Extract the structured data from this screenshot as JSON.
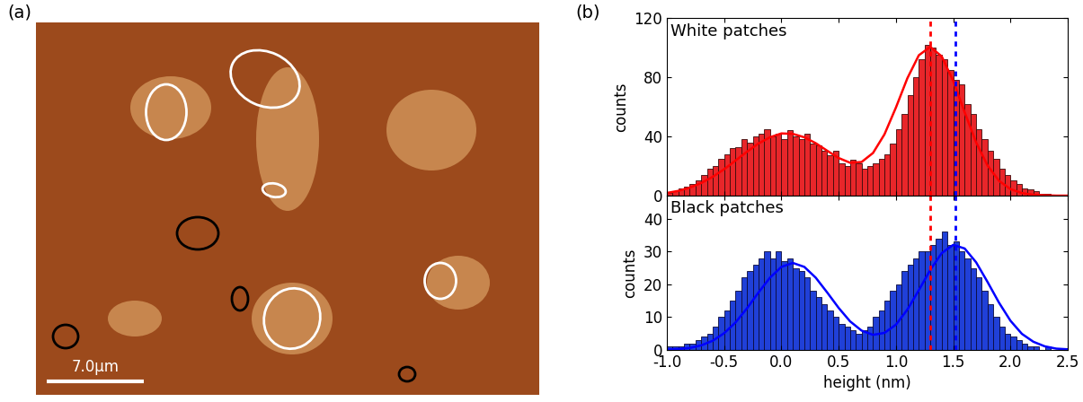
{
  "chart_data": [
    {
      "type": "image",
      "panel_label": "(a)",
      "scale_bar": "7.0µm"
    },
    {
      "type": "histogram",
      "panel_label": "(b)",
      "title": "White patches",
      "y_label": "counts",
      "color": "#e8262a",
      "bins": [
        -1.0,
        -0.95,
        -0.9,
        -0.85,
        -0.8,
        -0.75,
        -0.7,
        -0.65,
        -0.6,
        -0.55,
        -0.5,
        -0.45,
        -0.4,
        -0.35,
        -0.3,
        -0.25,
        -0.2,
        -0.15,
        -0.1,
        -0.05,
        0.0,
        0.05,
        0.1,
        0.15,
        0.2,
        0.25,
        0.3,
        0.35,
        0.4,
        0.45,
        0.5,
        0.55,
        0.6,
        0.65,
        0.7,
        0.75,
        0.8,
        0.85,
        0.9,
        0.95,
        1.0,
        1.05,
        1.1,
        1.15,
        1.2,
        1.25,
        1.3,
        1.35,
        1.4,
        1.45,
        1.5,
        1.55,
        1.6,
        1.65,
        1.7,
        1.75,
        1.8,
        1.85,
        1.9,
        1.95,
        2.0,
        2.05,
        2.1,
        2.15,
        2.2,
        2.25,
        2.3,
        2.35,
        2.4,
        2.45,
        2.5
      ],
      "values": [
        2,
        3,
        5,
        6,
        8,
        10,
        14,
        18,
        20,
        25,
        28,
        32,
        33,
        38,
        36,
        40,
        42,
        45,
        40,
        42,
        38,
        44,
        40,
        38,
        42,
        35,
        34,
        30,
        27,
        30,
        22,
        20,
        24,
        22,
        18,
        20,
        22,
        25,
        28,
        35,
        45,
        55,
        68,
        80,
        92,
        102,
        100,
        95,
        92,
        85,
        78,
        75,
        62,
        55,
        45,
        38,
        30,
        25,
        18,
        14,
        10,
        8,
        5,
        4,
        3,
        1,
        1,
        0,
        0,
        0
      ],
      "fit": {
        "color": "#ff0000",
        "x": [
          -1.0,
          -0.9,
          -0.8,
          -0.7,
          -0.6,
          -0.5,
          -0.4,
          -0.3,
          -0.2,
          -0.1,
          0.0,
          0.1,
          0.2,
          0.3,
          0.4,
          0.5,
          0.6,
          0.7,
          0.8,
          0.9,
          1.0,
          1.1,
          1.2,
          1.3,
          1.4,
          1.5,
          1.6,
          1.7,
          1.8,
          1.9,
          2.0,
          2.1,
          2.2,
          2.3,
          2.4,
          2.5
        ],
        "values": [
          1.8,
          3.2,
          5.4,
          8.5,
          12.7,
          17.8,
          23.7,
          29.7,
          35.2,
          39.4,
          42.0,
          41.7,
          39.4,
          35.4,
          30.3,
          25.4,
          22.2,
          22.7,
          28.8,
          41.4,
          59.5,
          79.3,
          94.8,
          100.5,
          94.0,
          77.5,
          56.3,
          36.0,
          20.3,
          10.0,
          4.4,
          1.7,
          0.6,
          0.2,
          0.0,
          0.0
        ]
      },
      "vlines": [
        {
          "value": 1.3,
          "color": "#ff0000"
        },
        {
          "value": 1.52,
          "color": "#0000ff"
        }
      ],
      "xlim": [
        -1.0,
        2.5
      ],
      "xticks": [
        {
          "value": -1.0,
          "label": "-1.0"
        },
        {
          "value": -0.5,
          "label": "-0.5"
        },
        {
          "value": 0.0,
          "label": "0.0"
        },
        {
          "value": 0.5,
          "label": "0.5"
        },
        {
          "value": 1.0,
          "label": "1.0"
        },
        {
          "value": 1.5,
          "label": "1.5"
        },
        {
          "value": 2.0,
          "label": "2.0"
        },
        {
          "value": 2.5,
          "label": "2.5"
        }
      ],
      "ylim": [
        0,
        120
      ],
      "yticks": [
        0,
        40,
        80,
        120
      ],
      "tick_labels": "y"
    },
    {
      "type": "histogram",
      "title": "Black patches",
      "y_label": "counts",
      "x_label": "height (nm)",
      "color": "#2040d8",
      "bins": [
        -1.0,
        -0.95,
        -0.9,
        -0.85,
        -0.8,
        -0.75,
        -0.7,
        -0.65,
        -0.6,
        -0.55,
        -0.5,
        -0.45,
        -0.4,
        -0.35,
        -0.3,
        -0.25,
        -0.2,
        -0.15,
        -0.1,
        -0.05,
        0.0,
        0.05,
        0.1,
        0.15,
        0.2,
        0.25,
        0.3,
        0.35,
        0.4,
        0.45,
        0.5,
        0.55,
        0.6,
        0.65,
        0.7,
        0.75,
        0.8,
        0.85,
        0.9,
        0.95,
        1.0,
        1.05,
        1.1,
        1.15,
        1.2,
        1.25,
        1.3,
        1.35,
        1.4,
        1.45,
        1.5,
        1.55,
        1.6,
        1.65,
        1.7,
        1.75,
        1.8,
        1.85,
        1.9,
        1.95,
        2.0,
        2.05,
        2.1,
        2.15,
        2.2,
        2.25,
        2.3,
        2.35,
        2.4,
        2.45,
        2.5
      ],
      "values": [
        1,
        1,
        1,
        2,
        2,
        3,
        4,
        5,
        7,
        10,
        12,
        15,
        18,
        22,
        24,
        26,
        28,
        30,
        28,
        30,
        27,
        28,
        25,
        24,
        22,
        18,
        16,
        14,
        12,
        10,
        8,
        7,
        6,
        5,
        6,
        7,
        10,
        12,
        15,
        18,
        20,
        24,
        26,
        28,
        30,
        30,
        32,
        34,
        36,
        32,
        33,
        30,
        28,
        25,
        22,
        18,
        14,
        10,
        7,
        5,
        4,
        3,
        2,
        1,
        1,
        0,
        1,
        0,
        0,
        0
      ],
      "fit": {
        "color": "#0000ff",
        "x": [
          -1.0,
          -0.9,
          -0.8,
          -0.7,
          -0.6,
          -0.5,
          -0.4,
          -0.3,
          -0.2,
          -0.1,
          0.0,
          0.1,
          0.2,
          0.3,
          0.4,
          0.5,
          0.6,
          0.7,
          0.8,
          0.9,
          1.0,
          1.1,
          1.2,
          1.3,
          1.4,
          1.5,
          1.6,
          1.7,
          1.8,
          1.9,
          2.0,
          2.1,
          2.2,
          2.3,
          2.4,
          2.5
        ],
        "values": [
          0.1,
          0.3,
          0.6,
          1.4,
          2.8,
          5.1,
          8.4,
          12.7,
          17.5,
          22.0,
          25.3,
          26.5,
          25.3,
          22.0,
          17.5,
          12.8,
          8.7,
          5.9,
          4.6,
          5.2,
          7.7,
          12.3,
          18.2,
          24.4,
          29.5,
          32.0,
          30.9,
          26.7,
          20.7,
          14.4,
          8.9,
          4.9,
          2.5,
          1.1,
          0.4,
          0.2
        ]
      },
      "vlines": [
        {
          "value": 1.3,
          "color": "#ff0000"
        },
        {
          "value": 1.52,
          "color": "#0000ff"
        }
      ],
      "xlim": [
        -1.0,
        2.5
      ],
      "xticks": [
        {
          "value": -1.0,
          "label": "-1.0"
        },
        {
          "value": -0.5,
          "label": "-0.5"
        },
        {
          "value": 0.0,
          "label": "0.0"
        },
        {
          "value": 0.5,
          "label": "0.5"
        },
        {
          "value": 1.0,
          "label": "1.0"
        },
        {
          "value": 1.5,
          "label": "1.5"
        },
        {
          "value": 2.0,
          "label": "2.0"
        },
        {
          "value": 2.5,
          "label": "2.5"
        }
      ],
      "ylim": [
        0,
        47
      ],
      "yticks": [
        0,
        10,
        20,
        30,
        40
      ]
    }
  ]
}
